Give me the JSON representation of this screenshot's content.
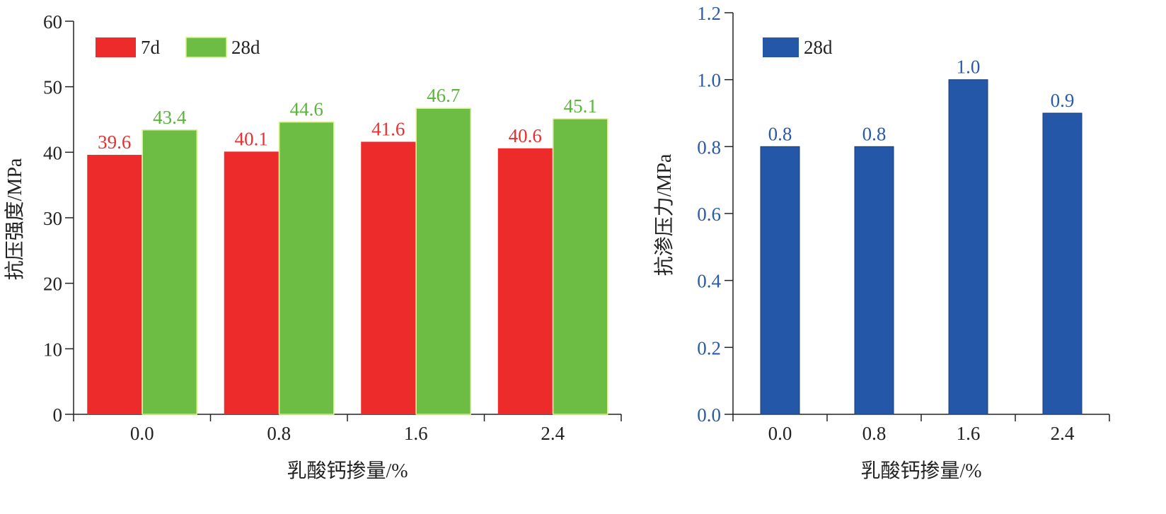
{
  "chart_data": [
    {
      "type": "bar",
      "xlabel": "乳酸钙掺量/%",
      "ylabel": "抗压强度/MPa",
      "ylim": [
        0,
        60
      ],
      "yticks": [
        0,
        10,
        20,
        30,
        40,
        50,
        60
      ],
      "ytick_labels": [
        "0",
        "10",
        "20",
        "30",
        "40",
        "50",
        "60"
      ],
      "categories": [
        "0.0",
        "0.8",
        "1.6",
        "2.4"
      ],
      "series": [
        {
          "name": "7d",
          "values": [
            39.6,
            40.1,
            41.6,
            40.6
          ],
          "labels": [
            "39.6",
            "40.1",
            "41.6",
            "40.6"
          ],
          "color": "#ee2b2b",
          "label_color": "#e83030"
        },
        {
          "name": "28d",
          "values": [
            43.4,
            44.6,
            46.7,
            45.1
          ],
          "labels": [
            "43.4",
            "44.6",
            "46.7",
            "45.1"
          ],
          "color": "#6dbd45",
          "label_color": "#5bb43c"
        }
      ],
      "grid": false,
      "legend": "top-left"
    },
    {
      "type": "bar",
      "xlabel": "乳酸钙掺量/%",
      "ylabel": "抗渗压力/MPa",
      "ylim": [
        0,
        1.2
      ],
      "yticks": [
        0,
        0.2,
        0.4,
        0.6,
        0.8,
        1.0,
        1.2
      ],
      "ytick_labels": [
        "0.0",
        "0.2",
        "0.4",
        "0.6",
        "0.8",
        "1.0",
        "1.2"
      ],
      "categories": [
        "0.0",
        "0.8",
        "1.6",
        "2.4"
      ],
      "series": [
        {
          "name": "28d",
          "values": [
            0.8,
            0.8,
            1.0,
            0.9
          ],
          "labels": [
            "0.8",
            "0.8",
            "1.0",
            "0.9"
          ],
          "color": "#2557a8",
          "label_color": "#2a5aa8"
        }
      ],
      "grid": false,
      "legend": "top-left",
      "axis_color": "#2a5aa8"
    }
  ]
}
